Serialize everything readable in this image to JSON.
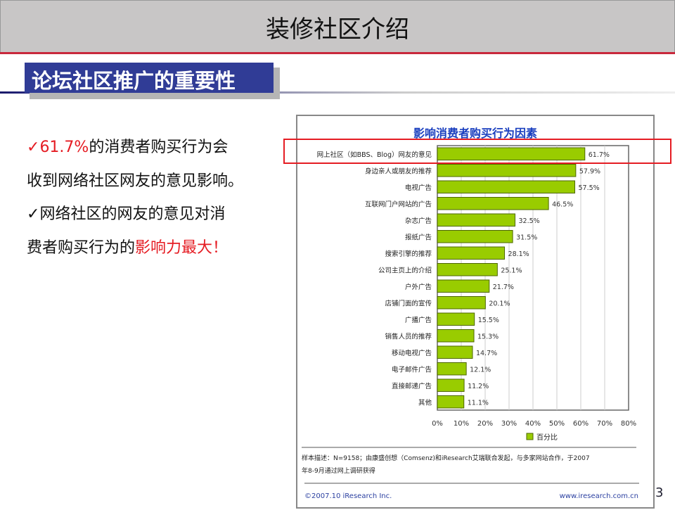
{
  "slide": {
    "title": "装修社区介绍",
    "section": "论坛社区推广的重要性",
    "page_number": "3"
  },
  "bullets": [
    {
      "check": "✓",
      "red": "61.7%",
      "text": "的消费者购买行为会"
    },
    {
      "text": "收到网络社区网友的意见影响。"
    },
    {
      "check": "✓",
      "text": "网络社区的网友的意见对消"
    },
    {
      "text": "费者购买行为的",
      "red": "影响力最大！"
    }
  ],
  "colors": {
    "bar": "#99cc00",
    "bar_border": "#4d6600",
    "title": "#1a3fbf",
    "highlight": "#e51c23",
    "banner": "#303c96"
  },
  "chart_data": {
    "type": "bar",
    "orientation": "horizontal",
    "title": "影响消费者购买行为因素",
    "categories": [
      "网上社区（如BBS、Blog）网友的意见",
      "身边亲人或朋友的推荐",
      "电视广告",
      "互联网门户网站的广告",
      "杂志广告",
      "报纸广告",
      "搜索引擎的推荐",
      "公司主页上的介绍",
      "户外广告",
      "店铺门面的宣传",
      "广播广告",
      "销售人员的推荐",
      "移动电视广告",
      "电子邮件广告",
      "直接邮递广告",
      "其他"
    ],
    "series": [
      {
        "name": "百分比",
        "values": [
          61.7,
          57.9,
          57.5,
          46.5,
          32.5,
          31.5,
          28.1,
          25.1,
          21.7,
          20.1,
          15.5,
          15.3,
          14.7,
          12.1,
          11.2,
          11.1
        ]
      }
    ],
    "data_labels": [
      "61.7%",
      "57.9%",
      "57.5%",
      "46.5%",
      "32.5%",
      "31.5%",
      "28.1%",
      "25.1%",
      "21.7%",
      "20.1%",
      "15.5%",
      "15.3%",
      "14.7%",
      "12.1%",
      "11.2%",
      "11.1%"
    ],
    "xlim": [
      0,
      80
    ],
    "xticks": [
      "0%",
      "10%",
      "20%",
      "30%",
      "40%",
      "50%",
      "60%",
      "70%",
      "80%"
    ],
    "grid": true,
    "legend": "bottom",
    "note": "样本描述：N=9158；由康盛创想（Comsenz)和iResearch艾瑞联合发起，与多家网站合作，于2007年8-9月通过网上调研获得",
    "footer_left": "©2007.10 iResearch Inc.",
    "footer_right": "www.iresearch.com.cn",
    "highlighted_category": "网上社区（如BBS、Blog）网友的意见"
  }
}
